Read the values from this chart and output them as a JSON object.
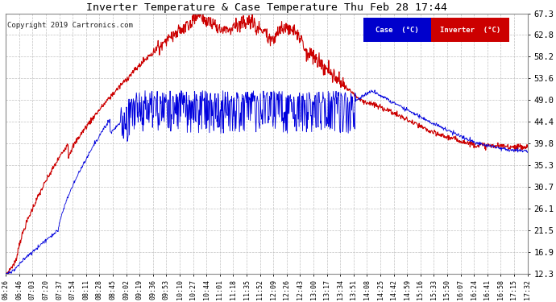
{
  "title": "Inverter Temperature & Case Temperature Thu Feb 28 17:44",
  "copyright": "Copyright 2019 Cartronics.com",
  "background_color": "#ffffff",
  "plot_bg_color": "#ffffff",
  "grid_color": "#bbbbbb",
  "yticks": [
    12.3,
    16.9,
    21.5,
    26.1,
    30.7,
    35.3,
    39.8,
    44.4,
    49.0,
    53.6,
    58.2,
    62.8,
    67.3
  ],
  "ymin": 12.3,
  "ymax": 67.3,
  "case_color": "#0000dd",
  "inverter_color": "#cc0000",
  "legend_case_bg": "#0000cc",
  "legend_inverter_bg": "#cc0000",
  "xtick_labels": [
    "06:26",
    "06:46",
    "07:03",
    "07:20",
    "07:37",
    "07:54",
    "08:11",
    "08:28",
    "08:45",
    "09:02",
    "09:19",
    "09:36",
    "09:53",
    "10:10",
    "10:27",
    "10:44",
    "11:01",
    "11:18",
    "11:35",
    "11:52",
    "12:09",
    "12:26",
    "12:43",
    "13:00",
    "13:17",
    "13:34",
    "13:51",
    "14:08",
    "14:25",
    "14:42",
    "14:59",
    "15:16",
    "15:33",
    "15:50",
    "16:07",
    "16:24",
    "16:41",
    "16:58",
    "17:15",
    "17:32"
  ]
}
